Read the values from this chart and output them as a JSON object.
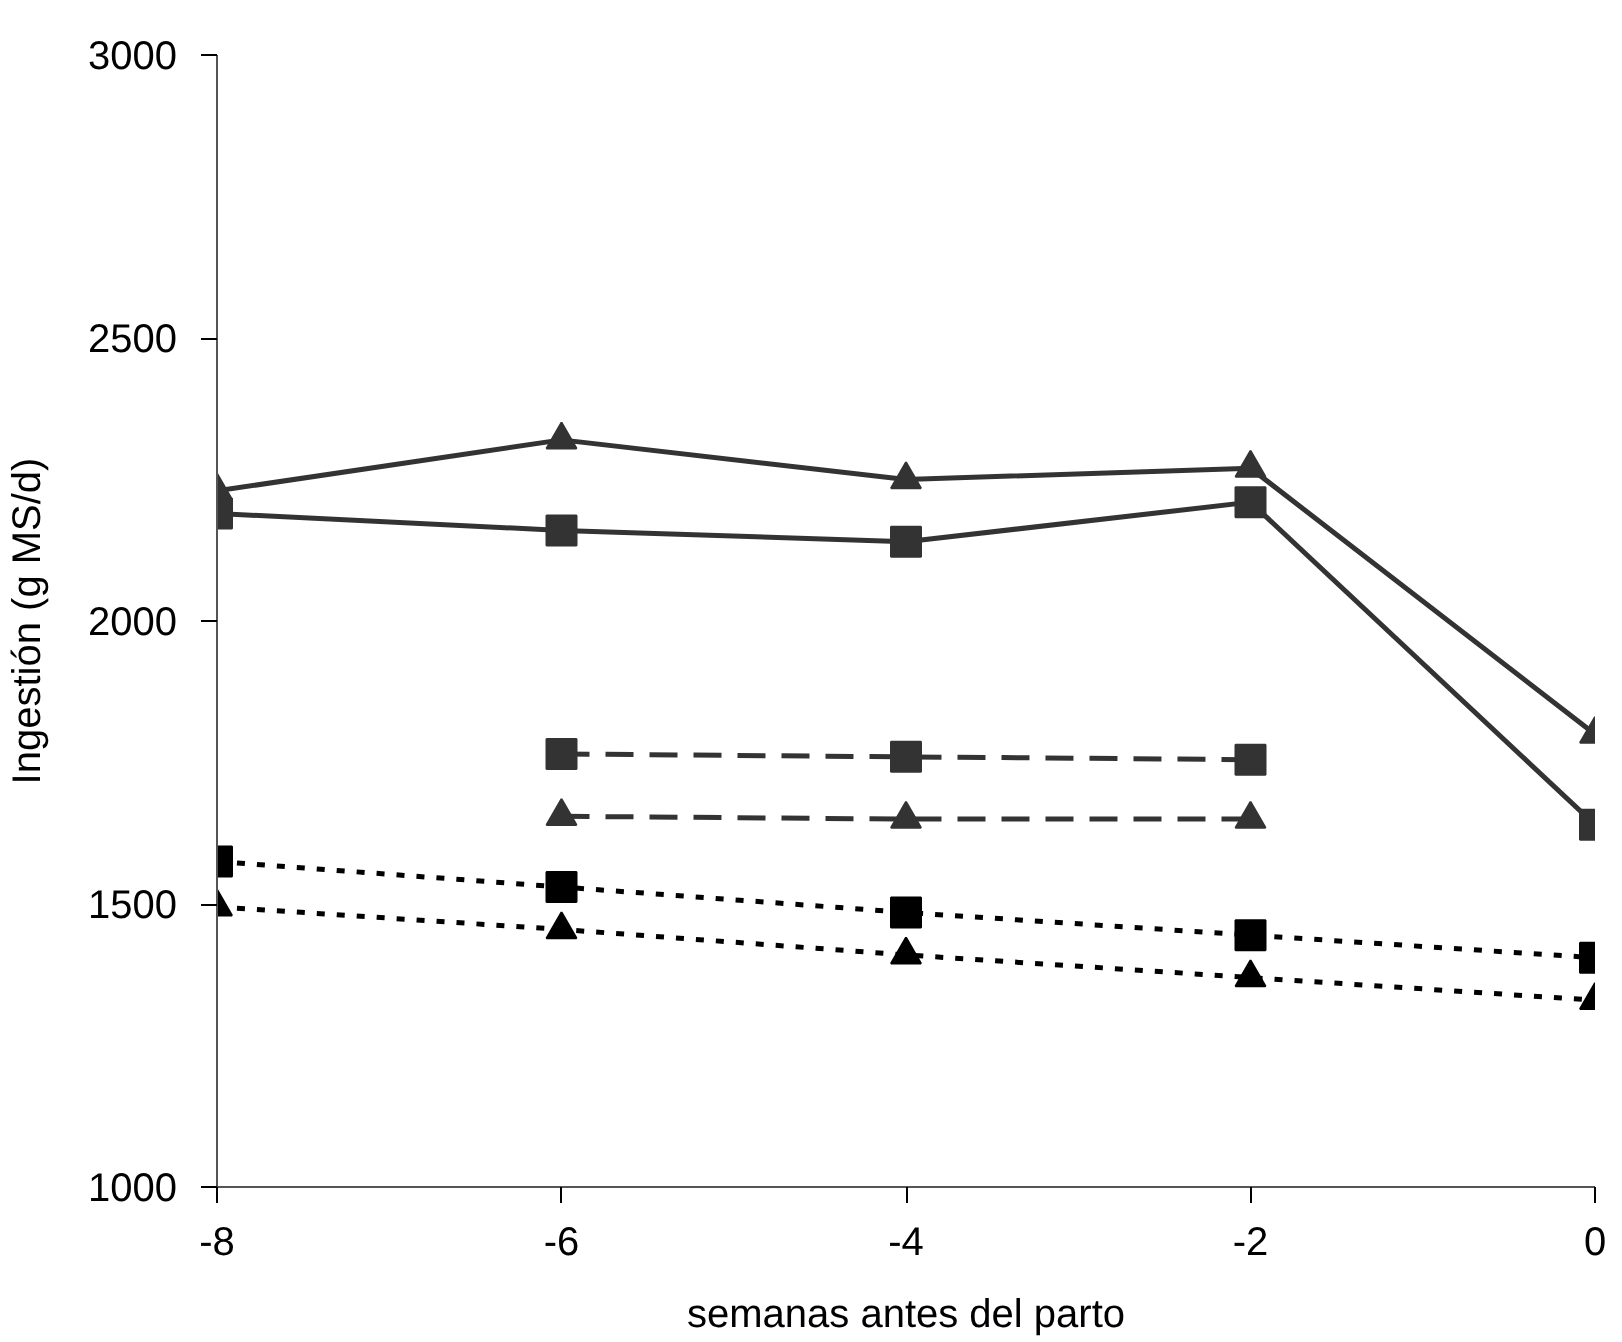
{
  "chart_data": {
    "type": "line",
    "xlabel": "semanas antes del parto",
    "ylabel": "Ingestión (g MS/d)",
    "x": [
      -8,
      -6,
      -4,
      -2,
      0
    ],
    "xlim": [
      -8,
      0
    ],
    "xticks": [
      -8,
      -6,
      -4,
      -2,
      0
    ],
    "ylim": [
      1000,
      3000
    ],
    "yticks": [
      1000,
      1500,
      2000,
      2500,
      3000
    ],
    "grid": false,
    "series": [
      {
        "color": "#333333",
        "marker": "triangle",
        "line_style": "solid",
        "values": [
          2230,
          2320,
          2250,
          2270,
          1800
        ]
      },
      {
        "color": "#333333",
        "marker": "square",
        "line_style": "solid",
        "values": [
          2190,
          2160,
          2140,
          2210,
          1640
        ]
      },
      {
        "color": "#333333",
        "marker": "square",
        "line_style": "dashed",
        "values": [
          null,
          1765,
          1760,
          1755,
          null
        ]
      },
      {
        "color": "#333333",
        "marker": "triangle",
        "line_style": "dashed",
        "values": [
          null,
          1655,
          1650,
          1650,
          null
        ]
      },
      {
        "color": "#000000",
        "marker": "square",
        "line_style": "dotted",
        "values": [
          1575,
          1530,
          1485,
          1445,
          1405
        ]
      },
      {
        "color": "#000000",
        "marker": "triangle",
        "line_style": "dotted",
        "values": [
          1495,
          1455,
          1410,
          1370,
          1330
        ]
      }
    ]
  }
}
